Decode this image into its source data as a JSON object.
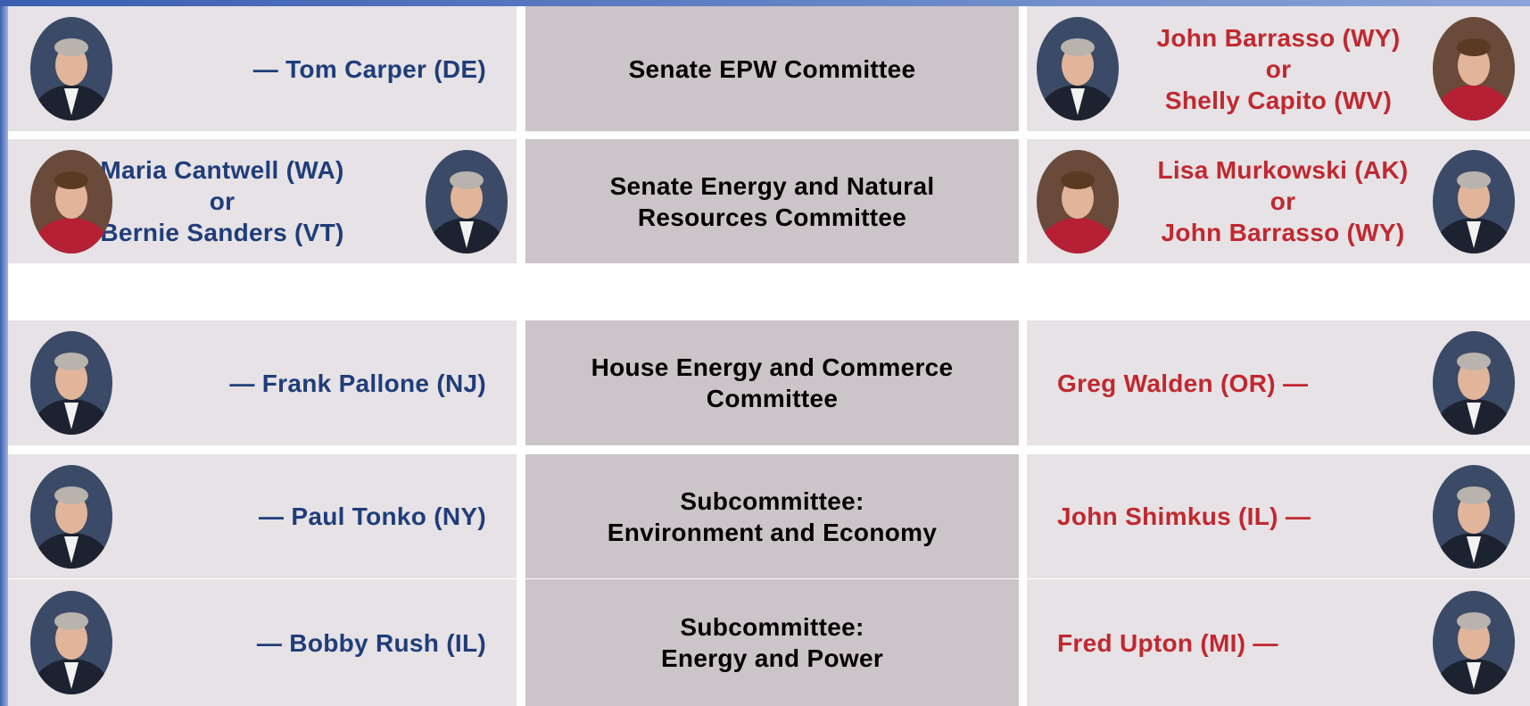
{
  "rows": [
    {
      "left": [
        "— Tom Carper (DE)"
      ],
      "committee": [
        "Senate EPW Committee"
      ],
      "right": [
        "John Barrasso (WY)",
        "or",
        "Shelly Capito (WV)"
      ]
    },
    {
      "left": [
        "Maria Cantwell (WA)",
        "or",
        "Bernie Sanders (VT)"
      ],
      "committee": [
        "Senate Energy and Natural",
        "Resources Committee"
      ],
      "right": [
        "Lisa Murkowski (AK)",
        "or",
        "John Barrasso (WY)"
      ]
    },
    {
      "left": [
        "— Frank Pallone (NJ)"
      ],
      "committee": [
        "House Energy and Commerce",
        "Committee"
      ],
      "right": [
        "Greg Walden (OR) —"
      ]
    },
    {
      "left": [
        "— Paul Tonko (NY)"
      ],
      "committee": [
        "Subcommittee:",
        "Environment and Economy"
      ],
      "right": [
        "John Shimkus (IL) —"
      ]
    },
    {
      "left": [
        "— Bobby Rush (IL)"
      ],
      "committee": [
        "Subcommittee:",
        "Energy and Power"
      ],
      "right": [
        "Fred Upton (MI) —"
      ]
    }
  ]
}
